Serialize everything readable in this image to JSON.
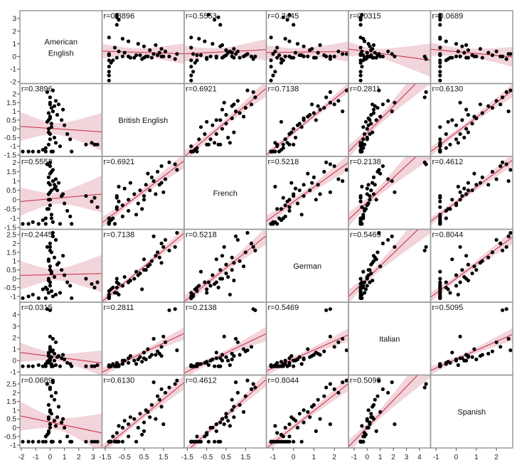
{
  "chart_data": {
    "type": "scatter-matrix",
    "variables": [
      {
        "name": "American English",
        "label_lines": [
          "American",
          "English"
        ],
        "xrange": [
          -2.1,
          3.62
        ],
        "yrange": [
          -2.14,
          3.62
        ],
        "xticks": [
          -2,
          -1,
          0,
          1,
          2,
          3
        ],
        "yticks": [
          -2,
          -1,
          0,
          1,
          2,
          3
        ]
      },
      {
        "name": "British English",
        "label_lines": [
          "British English"
        ],
        "xrange": [
          -1.66,
          2.57
        ],
        "yrange": [
          -1.58,
          2.59
        ],
        "xticks": [
          -1.5,
          -0.5,
          0.5,
          1.5
        ],
        "yticks": [
          -1.5,
          -1,
          -0.5,
          0,
          0.5,
          1,
          1.5,
          2
        ]
      },
      {
        "name": "French",
        "label_lines": [
          "French"
        ],
        "xrange": [
          -1.66,
          2.57
        ],
        "yrange": [
          -1.59,
          2.32
        ],
        "xticks": [
          -1.5,
          -0.5,
          0.5,
          1.5
        ],
        "yticks": [
          -1.5,
          -1,
          -0.5,
          0,
          0.5,
          1,
          1.5,
          2
        ]
      },
      {
        "name": "German",
        "label_lines": [
          "German"
        ],
        "xrange": [
          -1.33,
          2.69
        ],
        "yrange": [
          -1.33,
          2.8
        ],
        "xticks": [
          -1,
          0,
          1,
          2
        ],
        "yticks": [
          -1,
          -0.5,
          0,
          0.5,
          1,
          1.5,
          2,
          2.5
        ]
      },
      {
        "name": "Italian",
        "label_lines": [
          "Italian"
        ],
        "xrange": [
          -1.43,
          4.85
        ],
        "yrange": [
          -1.27,
          5.1
        ],
        "xticks": [
          -1,
          0,
          1,
          2,
          3,
          4
        ],
        "yticks": [
          -1,
          0,
          1,
          2,
          3,
          4
        ]
      },
      {
        "name": "Spanish",
        "label_lines": [
          "Spanish"
        ],
        "xrange": [
          -1.27,
          2.81
        ],
        "yrange": [
          -1.16,
          3.01
        ],
        "xticks": [
          -1,
          0,
          1,
          2
        ],
        "yticks": [
          -1,
          -0.5,
          0,
          0.5,
          1,
          1.5,
          2,
          2.5
        ]
      }
    ],
    "correlations": [
      [
        null,
        "r=0.3896",
        "r=0.5553",
        "r=0.2445",
        "r=0.0315",
        "r=0.0689"
      ],
      [
        "r=0.3896",
        null,
        "r=0.6921",
        "r=0.7138",
        "r=0.2811",
        "r=0.6130"
      ],
      [
        "r=0.5553",
        "r=0.6921",
        null,
        "r=0.5218",
        "r=0.2138",
        "r=0.4612"
      ],
      [
        "r=0.2445",
        "r=0.7138",
        "r=0.5218",
        null,
        "r=0.5469",
        "r=0.8044"
      ],
      [
        "r=0.0315",
        "r=0.2811",
        "r=0.2138",
        "r=0.5469",
        null,
        "r=0.5095"
      ],
      [
        "r=0.0689",
        "r=0.6130",
        "r=0.4612",
        "r=0.8044",
        "r=0.5095",
        null
      ]
    ],
    "observations": [
      [
        -1.9,
        -1.3,
        -1.3,
        -1.1,
        -0.5,
        -0.8
      ],
      [
        -1.5,
        -1.3,
        -1.3,
        -1.0,
        -0.5,
        -0.8
      ],
      [
        -1.2,
        -1.3,
        -1.2,
        -0.9,
        -0.5,
        -0.8
      ],
      [
        -0.8,
        -1.3,
        -1.3,
        -1.1,
        -0.4,
        -0.8
      ],
      [
        -0.5,
        -1.2,
        -1.1,
        -0.6,
        -0.5,
        -0.8
      ],
      [
        -0.3,
        -1.1,
        -1.0,
        -0.5,
        -0.3,
        -0.5
      ],
      [
        -0.1,
        -0.9,
        -0.5,
        -0.8,
        -0.2,
        -0.3
      ],
      [
        0.0,
        -0.6,
        -0.3,
        -0.4,
        0.0,
        0.0
      ],
      [
        0.0,
        -0.3,
        0.0,
        -0.2,
        0.2,
        0.2
      ],
      [
        -0.1,
        0.0,
        0.3,
        0.0,
        0.0,
        0.5
      ],
      [
        0.1,
        0.3,
        0.5,
        0.3,
        0.3,
        0.8
      ],
      [
        0.0,
        0.6,
        0.8,
        0.5,
        0.1,
        1.0
      ],
      [
        -0.1,
        0.9,
        1.2,
        1.0,
        0.5,
        1.3
      ],
      [
        0.1,
        1.2,
        1.5,
        1.5,
        0.8,
        1.8
      ],
      [
        0.0,
        1.4,
        1.8,
        2.0,
        1.2,
        2.2
      ],
      [
        0.2,
        1.0,
        1.0,
        2.4,
        1.9,
        2.6
      ],
      [
        -0.2,
        2.1,
        1.9,
        1.8,
        4.5,
        2.5
      ],
      [
        0.0,
        1.8,
        2.0,
        1.6,
        4.4,
        2.3
      ],
      [
        0.3,
        1.3,
        0.8,
        1.2,
        0.6,
        1.6
      ],
      [
        0.5,
        0.8,
        0.5,
        0.8,
        0.3,
        0.6
      ],
      [
        0.8,
        0.5,
        0.2,
        0.5,
        0.2,
        0.3
      ],
      [
        1.0,
        0.2,
        -0.2,
        0.2,
        0.1,
        0.0
      ],
      [
        1.2,
        -0.3,
        -0.6,
        -0.2,
        -0.2,
        -0.5
      ],
      [
        1.4,
        -0.6,
        -0.9,
        -0.4,
        -0.3,
        -0.8
      ],
      [
        0.6,
        1.4,
        0.9,
        0.9,
        0.4,
        1.2
      ],
      [
        0.9,
        1.1,
        0.3,
        1.3,
        0.5,
        0.5
      ],
      [
        2.5,
        -0.9,
        0.2,
        0.0,
        -0.5,
        -0.8
      ],
      [
        2.9,
        -0.8,
        -0.1,
        -0.3,
        -0.5,
        -0.8
      ],
      [
        3.1,
        -0.9,
        0.1,
        -0.5,
        -0.5,
        -0.8
      ],
      [
        3.3,
        -0.9,
        -0.4,
        -0.2,
        -0.4,
        -0.8
      ],
      [
        0.1,
        -1.3,
        -1.0,
        -0.7,
        -0.5,
        -0.8
      ],
      [
        0.3,
        -0.5,
        0.6,
        0.1,
        0.0,
        0.4
      ],
      [
        -0.2,
        0.4,
        -0.5,
        -0.6,
        -0.1,
        -0.4
      ],
      [
        0.0,
        0.7,
        1.4,
        0.7,
        1.0,
        0.9
      ],
      [
        0.4,
        1.6,
        1.1,
        2.2,
        1.6,
        2.0
      ],
      [
        -0.3,
        -1.3,
        -1.3,
        -1.1,
        -0.5,
        -0.8
      ],
      [
        0.2,
        -1.3,
        -1.2,
        -1.0,
        -0.5,
        -0.8
      ],
      [
        0.1,
        0.1,
        -0.8,
        0.4,
        -0.3,
        -0.8
      ],
      [
        -0.1,
        -0.2,
        0.9,
        -0.1,
        0.4,
        0.6
      ],
      [
        0.7,
        -1.0,
        -1.3,
        -0.8,
        -0.5,
        -0.8
      ],
      [
        1.5,
        -1.3,
        -1.3,
        -1.1,
        -0.5,
        -0.8
      ],
      [
        0.0,
        1.5,
        0.4,
        1.8,
        2.1,
        0.2
      ],
      [
        0.2,
        2.2,
        1.6,
        2.6,
        0.9,
        2.7
      ],
      [
        -0.1,
        0.5,
        0.0,
        1.1,
        0.7,
        -0.2
      ],
      [
        0.4,
        -0.8,
        0.7,
        -0.9,
        -0.4,
        0.1
      ]
    ],
    "grid": false,
    "legend": "none",
    "colors": {
      "points": "#000000",
      "fit_line": "#c8283c",
      "confidence_band": "#f0cdd5",
      "frame": "#9a9a9a"
    }
  }
}
